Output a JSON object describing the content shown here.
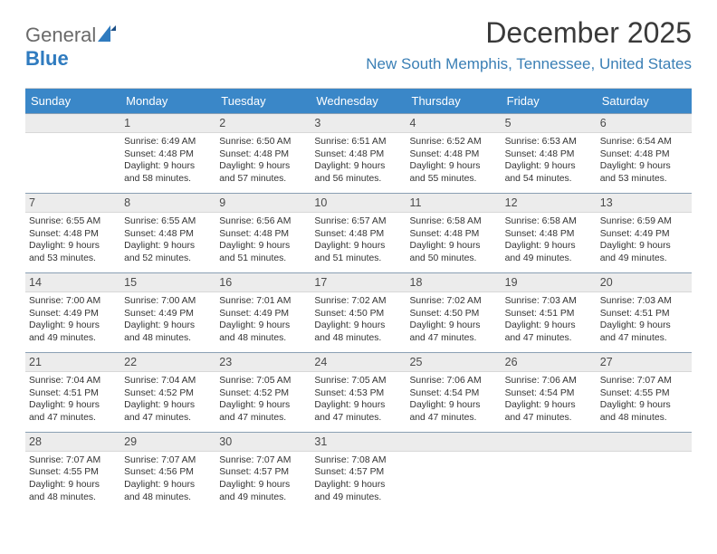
{
  "logo": {
    "word1": "General",
    "word2": "Blue"
  },
  "title": "December 2025",
  "location": "New South Memphis, Tennessee, United States",
  "colors": {
    "header_bg": "#3a87c8",
    "header_text": "#ffffff",
    "daynum_bg": "#ececec",
    "row_divider": "#8aa0b4",
    "location_color": "#3a7fb5",
    "logo_gray": "#6a6a6a",
    "logo_blue": "#2f7bbf"
  },
  "typography": {
    "title_fontsize": 32,
    "location_fontsize": 17,
    "header_fontsize": 13,
    "daynum_fontsize": 12.5,
    "cell_fontsize": 10.4
  },
  "weekdays": [
    "Sunday",
    "Monday",
    "Tuesday",
    "Wednesday",
    "Thursday",
    "Friday",
    "Saturday"
  ],
  "weeks": [
    [
      null,
      {
        "n": "1",
        "sr": "6:49 AM",
        "ss": "4:48 PM",
        "dl": "9 hours and 58 minutes."
      },
      {
        "n": "2",
        "sr": "6:50 AM",
        "ss": "4:48 PM",
        "dl": "9 hours and 57 minutes."
      },
      {
        "n": "3",
        "sr": "6:51 AM",
        "ss": "4:48 PM",
        "dl": "9 hours and 56 minutes."
      },
      {
        "n": "4",
        "sr": "6:52 AM",
        "ss": "4:48 PM",
        "dl": "9 hours and 55 minutes."
      },
      {
        "n": "5",
        "sr": "6:53 AM",
        "ss": "4:48 PM",
        "dl": "9 hours and 54 minutes."
      },
      {
        "n": "6",
        "sr": "6:54 AM",
        "ss": "4:48 PM",
        "dl": "9 hours and 53 minutes."
      }
    ],
    [
      {
        "n": "7",
        "sr": "6:55 AM",
        "ss": "4:48 PM",
        "dl": "9 hours and 53 minutes."
      },
      {
        "n": "8",
        "sr": "6:55 AM",
        "ss": "4:48 PM",
        "dl": "9 hours and 52 minutes."
      },
      {
        "n": "9",
        "sr": "6:56 AM",
        "ss": "4:48 PM",
        "dl": "9 hours and 51 minutes."
      },
      {
        "n": "10",
        "sr": "6:57 AM",
        "ss": "4:48 PM",
        "dl": "9 hours and 51 minutes."
      },
      {
        "n": "11",
        "sr": "6:58 AM",
        "ss": "4:48 PM",
        "dl": "9 hours and 50 minutes."
      },
      {
        "n": "12",
        "sr": "6:58 AM",
        "ss": "4:48 PM",
        "dl": "9 hours and 49 minutes."
      },
      {
        "n": "13",
        "sr": "6:59 AM",
        "ss": "4:49 PM",
        "dl": "9 hours and 49 minutes."
      }
    ],
    [
      {
        "n": "14",
        "sr": "7:00 AM",
        "ss": "4:49 PM",
        "dl": "9 hours and 49 minutes."
      },
      {
        "n": "15",
        "sr": "7:00 AM",
        "ss": "4:49 PM",
        "dl": "9 hours and 48 minutes."
      },
      {
        "n": "16",
        "sr": "7:01 AM",
        "ss": "4:49 PM",
        "dl": "9 hours and 48 minutes."
      },
      {
        "n": "17",
        "sr": "7:02 AM",
        "ss": "4:50 PM",
        "dl": "9 hours and 48 minutes."
      },
      {
        "n": "18",
        "sr": "7:02 AM",
        "ss": "4:50 PM",
        "dl": "9 hours and 47 minutes."
      },
      {
        "n": "19",
        "sr": "7:03 AM",
        "ss": "4:51 PM",
        "dl": "9 hours and 47 minutes."
      },
      {
        "n": "20",
        "sr": "7:03 AM",
        "ss": "4:51 PM",
        "dl": "9 hours and 47 minutes."
      }
    ],
    [
      {
        "n": "21",
        "sr": "7:04 AM",
        "ss": "4:51 PM",
        "dl": "9 hours and 47 minutes."
      },
      {
        "n": "22",
        "sr": "7:04 AM",
        "ss": "4:52 PM",
        "dl": "9 hours and 47 minutes."
      },
      {
        "n": "23",
        "sr": "7:05 AM",
        "ss": "4:52 PM",
        "dl": "9 hours and 47 minutes."
      },
      {
        "n": "24",
        "sr": "7:05 AM",
        "ss": "4:53 PM",
        "dl": "9 hours and 47 minutes."
      },
      {
        "n": "25",
        "sr": "7:06 AM",
        "ss": "4:54 PM",
        "dl": "9 hours and 47 minutes."
      },
      {
        "n": "26",
        "sr": "7:06 AM",
        "ss": "4:54 PM",
        "dl": "9 hours and 47 minutes."
      },
      {
        "n": "27",
        "sr": "7:07 AM",
        "ss": "4:55 PM",
        "dl": "9 hours and 48 minutes."
      }
    ],
    [
      {
        "n": "28",
        "sr": "7:07 AM",
        "ss": "4:55 PM",
        "dl": "9 hours and 48 minutes."
      },
      {
        "n": "29",
        "sr": "7:07 AM",
        "ss": "4:56 PM",
        "dl": "9 hours and 48 minutes."
      },
      {
        "n": "30",
        "sr": "7:07 AM",
        "ss": "4:57 PM",
        "dl": "9 hours and 49 minutes."
      },
      {
        "n": "31",
        "sr": "7:08 AM",
        "ss": "4:57 PM",
        "dl": "9 hours and 49 minutes."
      },
      null,
      null,
      null
    ]
  ],
  "labels": {
    "sunrise": "Sunrise: ",
    "sunset": "Sunset: ",
    "daylight": "Daylight: "
  }
}
